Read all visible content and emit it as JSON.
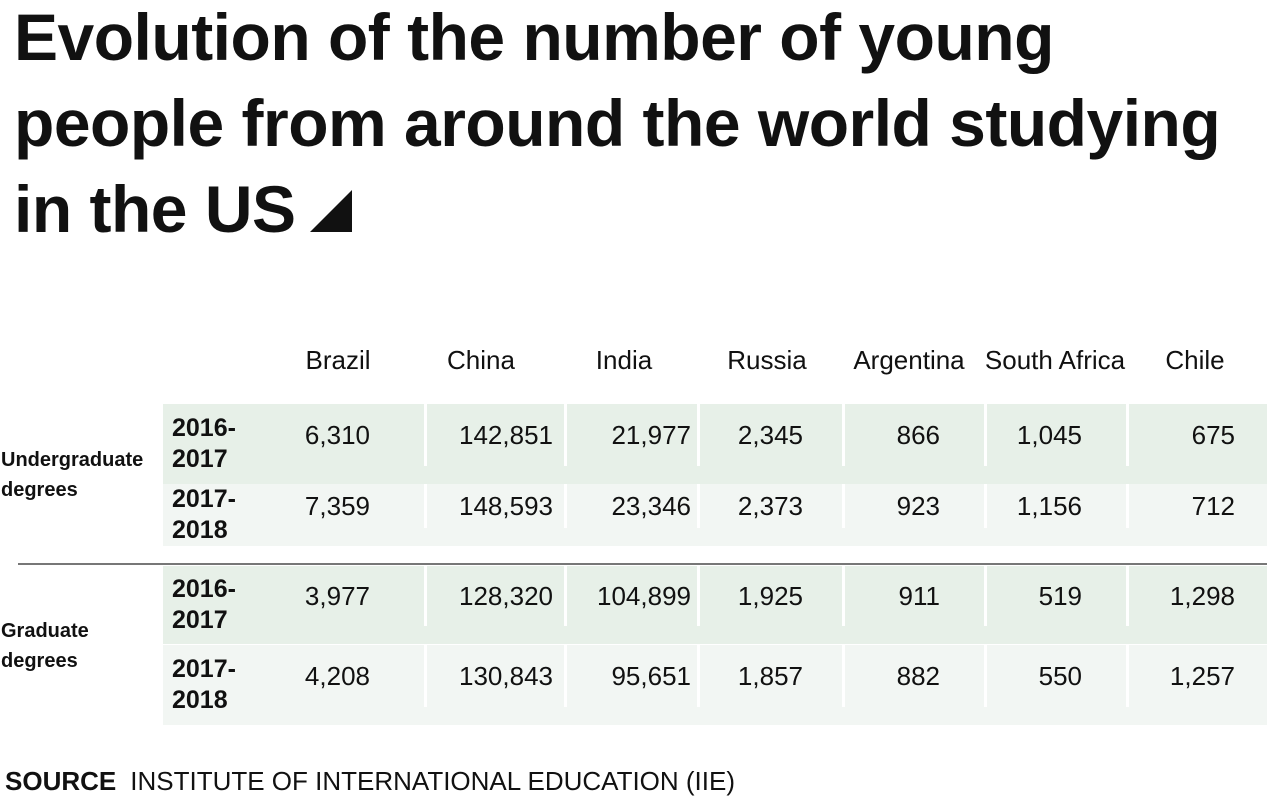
{
  "title": "Evolution of the number of young people from around the world studying in the US",
  "table": {
    "columns": [
      "Brazil",
      "China",
      "India",
      "Russia",
      "Argentina",
      "South Africa",
      "Chile"
    ],
    "groups": [
      {
        "label": "Undergraduate degrees",
        "rows": [
          {
            "year": "2016-2017",
            "values": [
              "6,310",
              "142,851",
              "21,977",
              "2,345",
              "866",
              "1,045",
              "675"
            ]
          },
          {
            "year": "2017-2018",
            "values": [
              "7,359",
              "148,593",
              "23,346",
              "2,373",
              "923",
              "1,156",
              "712"
            ]
          }
        ]
      },
      {
        "label": "Graduate degrees",
        "rows": [
          {
            "year": "2016-2017",
            "values": [
              "3,977",
              "128,320",
              "104,899",
              "1,925",
              "911",
              "519",
              "1,298"
            ]
          },
          {
            "year": "2017-2018",
            "values": [
              "4,208",
              "130,843",
              "95,651",
              "1,857",
              "882",
              "550",
              "1,257"
            ]
          }
        ]
      }
    ]
  },
  "source": {
    "label": "SOURCE",
    "text": "INSTITUTE OF INTERNATIONAL EDUCATION (IIE)"
  }
}
